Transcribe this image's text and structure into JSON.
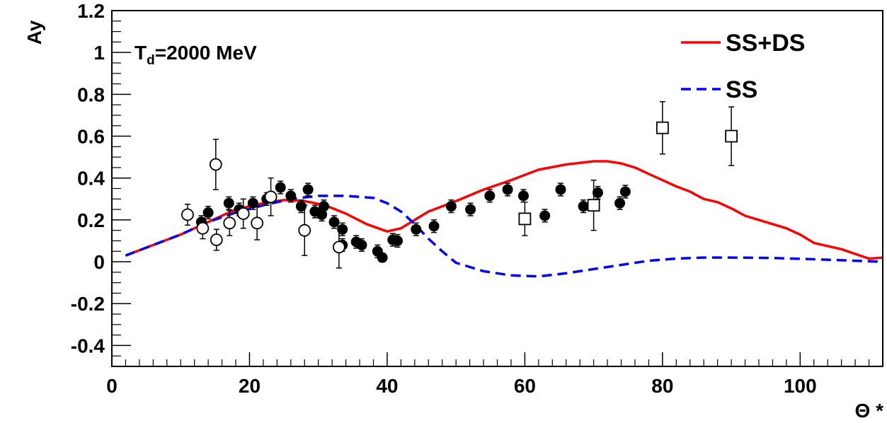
{
  "chart_data": {
    "type": "scatter",
    "title": "",
    "xlabel": "Θ *",
    "ylabel": "Ay",
    "xlim": [
      0,
      112
    ],
    "ylim": [
      -0.5,
      1.2
    ],
    "x_ticks": [
      0,
      20,
      40,
      60,
      80,
      100
    ],
    "x_tick_labels": [
      "0",
      "20",
      "40",
      "60",
      "80",
      "100"
    ],
    "y_ticks": [
      -0.4,
      -0.2,
      0,
      0.2,
      0.4,
      0.6,
      0.8,
      1,
      1.2
    ],
    "y_tick_labels": [
      "-0.4",
      "-0.2",
      "0",
      "0.2",
      "0.4",
      "0.6",
      "0.8",
      "1",
      "1.2"
    ],
    "grid": false,
    "legend_position": "top-right",
    "annotation": {
      "main": "T",
      "sub": "d",
      "rest": "=2000 MeV"
    },
    "curves": [
      {
        "name": "SS+DS",
        "color": "#ff0000",
        "style": "solid",
        "points": [
          [
            2,
            0.03
          ],
          [
            6,
            0.08
          ],
          [
            10,
            0.13
          ],
          [
            14,
            0.19
          ],
          [
            18,
            0.25
          ],
          [
            22,
            0.28
          ],
          [
            25,
            0.295
          ],
          [
            28,
            0.29
          ],
          [
            31,
            0.27
          ],
          [
            34,
            0.23
          ],
          [
            37,
            0.18
          ],
          [
            40,
            0.145
          ],
          [
            42,
            0.16
          ],
          [
            44,
            0.2
          ],
          [
            46,
            0.24
          ],
          [
            50,
            0.29
          ],
          [
            54,
            0.345
          ],
          [
            58,
            0.39
          ],
          [
            62,
            0.44
          ],
          [
            66,
            0.465
          ],
          [
            70,
            0.48
          ],
          [
            72,
            0.48
          ],
          [
            74,
            0.47
          ],
          [
            76,
            0.45
          ],
          [
            78,
            0.42
          ],
          [
            80,
            0.39
          ],
          [
            82,
            0.36
          ],
          [
            84,
            0.335
          ],
          [
            86,
            0.3
          ],
          [
            88,
            0.285
          ],
          [
            90,
            0.255
          ],
          [
            92,
            0.22
          ],
          [
            96,
            0.18
          ],
          [
            98,
            0.16
          ],
          [
            100,
            0.13
          ],
          [
            102,
            0.09
          ],
          [
            106,
            0.06
          ],
          [
            110,
            0.015
          ],
          [
            112,
            0.02
          ]
        ]
      },
      {
        "name": "SS",
        "color": "#0000ff",
        "style": "dashed",
        "points": [
          [
            2,
            0.03
          ],
          [
            6,
            0.08
          ],
          [
            10,
            0.13
          ],
          [
            14,
            0.19
          ],
          [
            18,
            0.235
          ],
          [
            22,
            0.27
          ],
          [
            26,
            0.3
          ],
          [
            30,
            0.315
          ],
          [
            34,
            0.315
          ],
          [
            38,
            0.305
          ],
          [
            40,
            0.28
          ],
          [
            42,
            0.24
          ],
          [
            44,
            0.18
          ],
          [
            46,
            0.11
          ],
          [
            48,
            0.05
          ],
          [
            50,
            -0.005
          ],
          [
            54,
            -0.045
          ],
          [
            58,
            -0.065
          ],
          [
            62,
            -0.07
          ],
          [
            66,
            -0.055
          ],
          [
            70,
            -0.035
          ],
          [
            74,
            -0.015
          ],
          [
            78,
            0.005
          ],
          [
            82,
            0.015
          ],
          [
            86,
            0.02
          ],
          [
            90,
            0.02
          ],
          [
            96,
            0.018
          ],
          [
            102,
            0.012
          ],
          [
            108,
            0.005
          ],
          [
            112,
            0.0
          ]
        ]
      }
    ],
    "series": [
      {
        "marker": "filled-circle",
        "points": [
          {
            "x": 13,
            "y": 0.19,
            "err": 0.03
          },
          {
            "x": 14,
            "y": 0.235,
            "err": 0.03
          },
          {
            "x": 17,
            "y": 0.28,
            "err": 0.03
          },
          {
            "x": 18.5,
            "y": 0.25,
            "err": 0.03
          },
          {
            "x": 20.5,
            "y": 0.28,
            "err": 0.03
          },
          {
            "x": 22.5,
            "y": 0.3,
            "err": 0.03
          },
          {
            "x": 24.5,
            "y": 0.355,
            "err": 0.03
          },
          {
            "x": 26,
            "y": 0.315,
            "err": 0.03
          },
          {
            "x": 27.5,
            "y": 0.265,
            "err": 0.03
          },
          {
            "x": 28.5,
            "y": 0.345,
            "err": 0.03
          },
          {
            "x": 29.5,
            "y": 0.24,
            "err": 0.03
          },
          {
            "x": 30.5,
            "y": 0.225,
            "err": 0.03
          },
          {
            "x": 30.8,
            "y": 0.265,
            "err": 0.03
          },
          {
            "x": 32.3,
            "y": 0.19,
            "err": 0.03
          },
          {
            "x": 33.5,
            "y": 0.155,
            "err": 0.03
          },
          {
            "x": 33.5,
            "y": 0.08,
            "err": 0.03
          },
          {
            "x": 35.5,
            "y": 0.095,
            "err": 0.03
          },
          {
            "x": 36.3,
            "y": 0.08,
            "err": 0.03
          },
          {
            "x": 38.6,
            "y": 0.05,
            "err": 0.03
          },
          {
            "x": 39.3,
            "y": 0.02,
            "err": 0.02
          },
          {
            "x": 40.8,
            "y": 0.105,
            "err": 0.03
          },
          {
            "x": 41.5,
            "y": 0.1,
            "err": 0.03
          },
          {
            "x": 44.2,
            "y": 0.155,
            "err": 0.03
          },
          {
            "x": 46.8,
            "y": 0.17,
            "err": 0.03
          },
          {
            "x": 49.3,
            "y": 0.265,
            "err": 0.03
          },
          {
            "x": 52.1,
            "y": 0.25,
            "err": 0.03
          },
          {
            "x": 54.9,
            "y": 0.315,
            "err": 0.03
          },
          {
            "x": 57.5,
            "y": 0.345,
            "err": 0.03
          },
          {
            "x": 59.8,
            "y": 0.315,
            "err": 0.03
          },
          {
            "x": 62.9,
            "y": 0.22,
            "err": 0.03
          },
          {
            "x": 65.2,
            "y": 0.345,
            "err": 0.03
          },
          {
            "x": 68.5,
            "y": 0.265,
            "err": 0.03
          },
          {
            "x": 70.6,
            "y": 0.33,
            "err": 0.03
          },
          {
            "x": 73.8,
            "y": 0.28,
            "err": 0.03
          },
          {
            "x": 74.6,
            "y": 0.335,
            "err": 0.03
          }
        ]
      },
      {
        "marker": "open-circle",
        "points": [
          {
            "x": 11,
            "y": 0.225,
            "err": 0.05
          },
          {
            "x": 13.2,
            "y": 0.16,
            "err": 0.05
          },
          {
            "x": 15.1,
            "y": 0.465,
            "err": 0.12
          },
          {
            "x": 15.2,
            "y": 0.105,
            "err": 0.05
          },
          {
            "x": 17.1,
            "y": 0.185,
            "err": 0.06
          },
          {
            "x": 19.1,
            "y": 0.23,
            "err": 0.07
          },
          {
            "x": 21.1,
            "y": 0.185,
            "err": 0.08
          },
          {
            "x": 23.1,
            "y": 0.31,
            "err": 0.09
          },
          {
            "x": 28,
            "y": 0.15,
            "err": 0.12
          },
          {
            "x": 33,
            "y": 0.07,
            "err": 0.1
          }
        ]
      },
      {
        "marker": "open-square",
        "points": [
          {
            "x": 60,
            "y": 0.205,
            "err": 0.08
          },
          {
            "x": 70,
            "y": 0.27,
            "err": 0.12
          },
          {
            "x": 80,
            "y": 0.64,
            "err": 0.125
          },
          {
            "x": 90,
            "y": 0.6,
            "err": 0.14
          }
        ]
      }
    ]
  }
}
